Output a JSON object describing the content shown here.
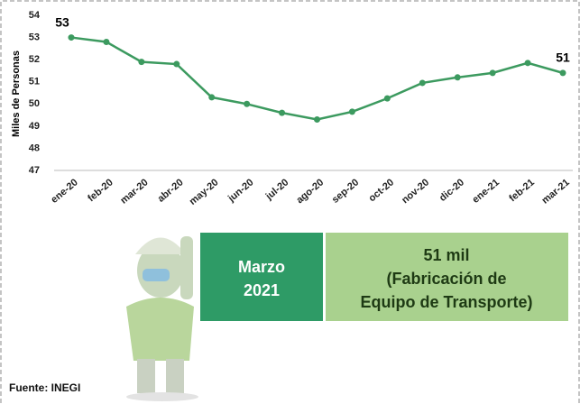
{
  "chart_data": {
    "type": "line",
    "y_label": "Miles de Personas",
    "categories": [
      "ene-20",
      "feb-20",
      "mar-20",
      "abr-20",
      "may-20",
      "jun-20",
      "jul-20",
      "ago-20",
      "sep-20",
      "oct-20",
      "nov-20",
      "dic-20",
      "ene-21",
      "feb-21",
      "mar-21"
    ],
    "values": [
      53.0,
      52.8,
      51.9,
      51.8,
      50.3,
      50.0,
      49.6,
      49.3,
      49.65,
      50.25,
      50.95,
      51.2,
      51.4,
      51.85,
      51.4
    ],
    "value_labels": [
      "53",
      null,
      null,
      null,
      null,
      null,
      null,
      null,
      null,
      null,
      null,
      null,
      null,
      null,
      "51"
    ],
    "color": "#3c9a5f",
    "ylim": [
      47,
      54
    ],
    "yticks": [
      47,
      48,
      49,
      50,
      51,
      52,
      53,
      54
    ],
    "grid": false
  },
  "panel": {
    "date_lines": [
      "Marzo",
      "2021"
    ],
    "value_lines": [
      "51 mil",
      "(Fabricación de",
      "Equipo de Transporte)"
    ]
  },
  "source": "Fuente: INEGI"
}
